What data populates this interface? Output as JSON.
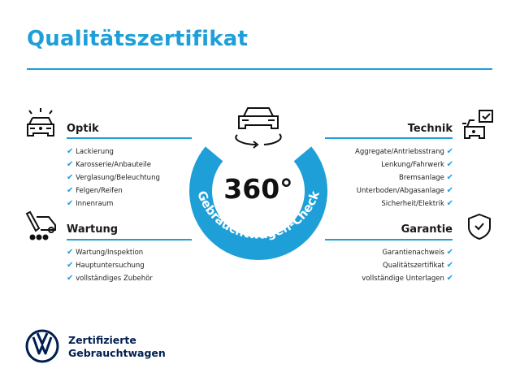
{
  "title": "Qualitätszertifikat",
  "colors": {
    "accent": "#1e9fd8",
    "brand": "#001e50"
  },
  "badge": {
    "value": "360°",
    "ring_text": "Gebrauchtwagen-Check",
    "icon": "car-rotate-icon"
  },
  "sections": {
    "optik": {
      "heading": "Optik",
      "icon": "car-lights-icon",
      "items": [
        "Lackierung",
        "Karosserie/Anbauteile",
        "Verglasung/Beleuchtung",
        "Felgen/Reifen",
        "Innenraum"
      ]
    },
    "wartung": {
      "heading": "Wartung",
      "icon": "service-tool-icon",
      "items": [
        "Wartung/Inspektion",
        "Hauptuntersuchung",
        "vollständiges Zubehör"
      ]
    },
    "technik": {
      "heading": "Technik",
      "icon": "car-checklist-icon",
      "items": [
        "Aggregate/Antriebsstrang",
        "Lenkung/Fahrwerk",
        "Bremsanlage",
        "Unterboden/Abgasanlage",
        "Sicherheit/Elektrik"
      ]
    },
    "garantie": {
      "heading": "Garantie",
      "icon": "shield-check-icon",
      "items": [
        "Garantienachweis",
        "Qualitätszertifikat",
        "vollständige Unterlagen"
      ]
    }
  },
  "check_mark": "✔",
  "footer": {
    "line1": "Zertifizierte",
    "line2": "Gebrauchtwagen",
    "logo": "vw-logo"
  }
}
